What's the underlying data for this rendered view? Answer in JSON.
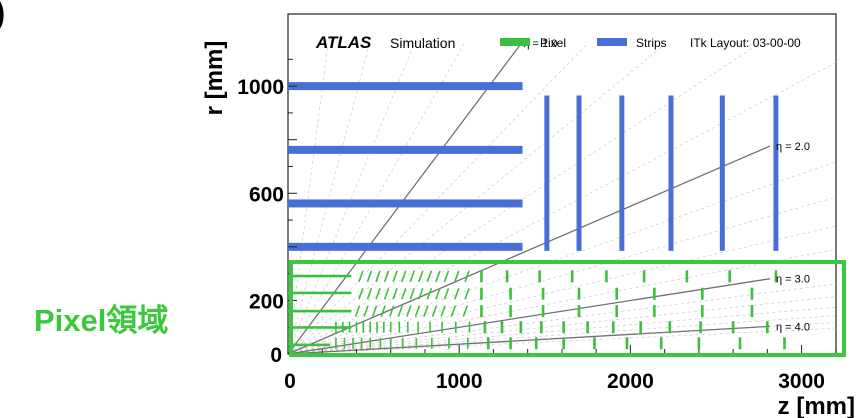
{
  "panel_marker": ")",
  "chart_data": {
    "type": "scatter",
    "title_bold": "ATLAS",
    "title_rest": "Simulation",
    "layout_label": "ITk Layout: 03-00-00",
    "xlabel": "z [mm]",
    "ylabel": "r [mm]",
    "xlim": [
      0,
      3200
    ],
    "ylim": [
      0,
      1160
    ],
    "xticks": [
      0,
      1000,
      2000,
      3000
    ],
    "yticks": [
      0,
      200,
      600,
      1000
    ],
    "grid": false,
    "legend": [
      {
        "name": "Pixel",
        "color": "#3cbf3c"
      },
      {
        "name": "Strips",
        "color": "#4a6fd4"
      }
    ],
    "eta_lines": [
      {
        "label": "η = 1.0",
        "eta": 1.0
      },
      {
        "label": "η = 2.0",
        "eta": 2.0
      },
      {
        "label": "η = 3.0",
        "eta": 3.0
      },
      {
        "label": "η = 4.0",
        "eta": 4.0
      }
    ],
    "strip_barrel_layers": [
      {
        "r": 400,
        "z_max": 1370
      },
      {
        "r": 562,
        "z_max": 1370
      },
      {
        "r": 762,
        "z_max": 1370
      },
      {
        "r": 1000,
        "z_max": 1370
      }
    ],
    "strip_endcap_disks": [
      {
        "z": 1512,
        "r_min": 385,
        "r_max": 965
      },
      {
        "z": 1700,
        "r_min": 385,
        "r_max": 965
      },
      {
        "z": 1950,
        "r_min": 385,
        "r_max": 965
      },
      {
        "z": 2237,
        "r_min": 385,
        "r_max": 965
      },
      {
        "z": 2537,
        "r_min": 385,
        "r_max": 965
      },
      {
        "z": 2850,
        "r_min": 385,
        "r_max": 965
      }
    ],
    "pixel_barrel_layers": [
      {
        "r": 34,
        "z_max": 245
      },
      {
        "r": 99,
        "z_max": 370
      },
      {
        "r": 160,
        "z_max": 370
      },
      {
        "r": 228,
        "z_max": 370
      },
      {
        "r": 291,
        "z_max": 370
      }
    ],
    "pixel_endcap_rings": [
      {
        "r": 290,
        "z": [
          420,
          470,
          520,
          570,
          620,
          670,
          720,
          770,
          820,
          870,
          920,
          980,
          1040,
          1130,
          1280,
          1470,
          1660,
          1860,
          2080,
          2330,
          2580,
          2850
        ]
      },
      {
        "r": 225,
        "z": [
          420,
          470,
          520,
          570,
          620,
          670,
          720,
          770,
          820,
          870,
          920,
          980,
          1040,
          1130,
          1300,
          1490,
          1700,
          1920,
          2140,
          2420,
          2710
        ]
      },
      {
        "r": 160,
        "z": [
          400,
          450,
          500,
          550,
          600,
          650,
          700,
          750,
          800,
          850,
          900,
          960,
          1030,
          1130,
          1300,
          1490,
          1700,
          1920,
          2140,
          2420,
          2710
        ]
      },
      {
        "r": 100,
        "z": [
          280,
          320,
          360,
          400,
          440,
          480,
          520,
          560,
          600,
          650,
          700,
          760,
          830,
          900,
          980,
          1060,
          1150,
          1250,
          1360,
          1480,
          1610,
          1750,
          1900,
          2060,
          2230,
          2410,
          2600,
          2800
        ]
      },
      {
        "r": 40,
        "z": [
          280,
          330,
          380,
          430,
          480,
          540,
          600,
          670,
          750,
          840,
          940,
          1050,
          1170,
          1300,
          1450,
          1610,
          1790,
          1980,
          2180,
          2400,
          2640,
          2900
        ]
      }
    ]
  },
  "highlight_label": "Pixel領域"
}
